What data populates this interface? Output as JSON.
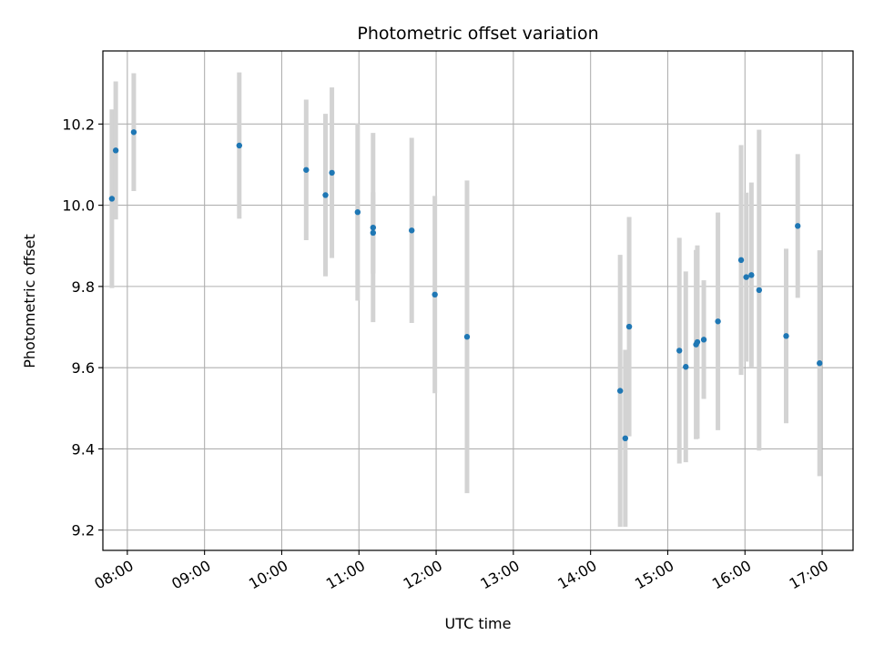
{
  "chart_data": {
    "type": "scatter",
    "title": "Photometric offset variation",
    "xlabel": "UTC time",
    "ylabel": "Photometric offset",
    "xlim": [
      "07:41",
      "17:24"
    ],
    "ylim": [
      9.15,
      10.38
    ],
    "grid": true,
    "x_ticks": [
      "08:00",
      "09:00",
      "10:00",
      "11:00",
      "12:00",
      "13:00",
      "14:00",
      "15:00",
      "16:00",
      "17:00"
    ],
    "y_ticks": [
      "9.2",
      "9.4",
      "9.6",
      "9.8",
      "10.0",
      "10.2"
    ],
    "colors": {
      "point": "#1f77b4",
      "errorbar": "#d3d3d3",
      "grid": "#b0b0b0",
      "axis": "#000000"
    },
    "series": [
      {
        "points": [
          {
            "x": "07:48",
            "y": 10.016,
            "err": 0.22
          },
          {
            "x": "07:51",
            "y": 10.135,
            "err": 0.17
          },
          {
            "x": "08:05",
            "y": 10.18,
            "err": 0.145
          },
          {
            "x": "09:27",
            "y": 10.147,
            "err": 0.18
          },
          {
            "x": "10:19",
            "y": 10.087,
            "err": 0.173
          },
          {
            "x": "10:34",
            "y": 10.025,
            "err": 0.2
          },
          {
            "x": "10:39",
            "y": 10.08,
            "err": 0.21
          },
          {
            "x": "10:59",
            "y": 9.983,
            "err": 0.218
          },
          {
            "x": "11:11",
            "y": 9.945,
            "err": 0.233
          },
          {
            "x": "11:11",
            "y": 9.932,
            "err": 0.1
          },
          {
            "x": "11:41",
            "y": 9.938,
            "err": 0.228
          },
          {
            "x": "11:59",
            "y": 9.78,
            "err": 0.243
          },
          {
            "x": "12:24",
            "y": 9.676,
            "err": 0.385
          },
          {
            "x": "14:23",
            "y": 9.543,
            "err": 0.335
          },
          {
            "x": "14:27",
            "y": 9.426,
            "err": 0.218
          },
          {
            "x": "14:30",
            "y": 9.701,
            "err": 0.27
          },
          {
            "x": "15:09",
            "y": 9.642,
            "err": 0.278
          },
          {
            "x": "15:14",
            "y": 9.602,
            "err": 0.235
          },
          {
            "x": "15:22",
            "y": 9.657,
            "err": 0.233
          },
          {
            "x": "15:23",
            "y": 9.663,
            "err": 0.238
          },
          {
            "x": "15:28",
            "y": 9.669,
            "err": 0.146
          },
          {
            "x": "15:39",
            "y": 9.714,
            "err": 0.268
          },
          {
            "x": "15:57",
            "y": 9.865,
            "err": 0.283
          },
          {
            "x": "16:01",
            "y": 9.823,
            "err": 0.208
          },
          {
            "x": "16:05",
            "y": 9.828,
            "err": 0.228
          },
          {
            "x": "16:11",
            "y": 9.791,
            "err": 0.395
          },
          {
            "x": "16:32",
            "y": 9.678,
            "err": 0.215
          },
          {
            "x": "16:41",
            "y": 9.949,
            "err": 0.177
          },
          {
            "x": "16:58",
            "y": 9.611,
            "err": 0.278
          }
        ]
      }
    ]
  }
}
